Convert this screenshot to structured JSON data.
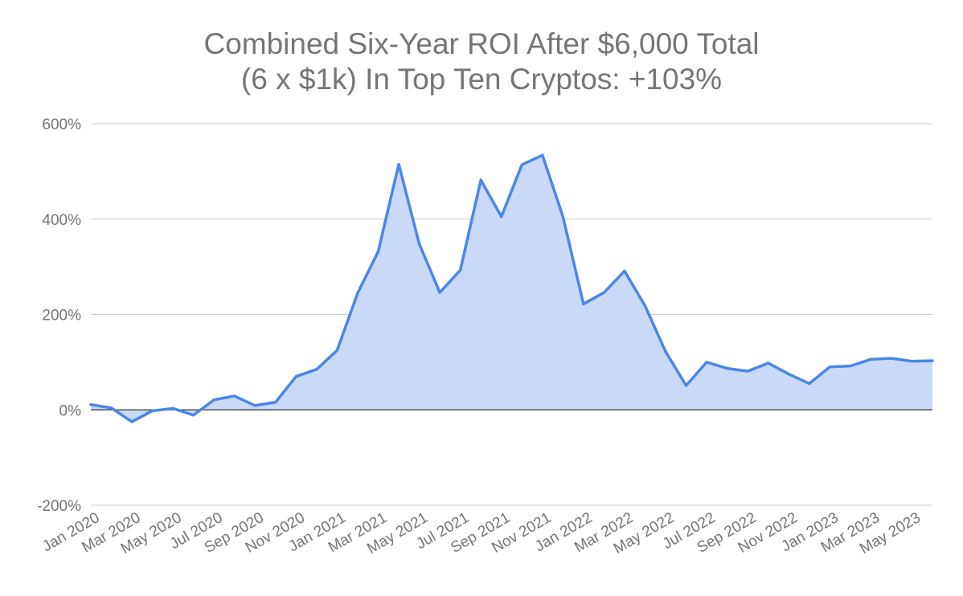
{
  "title": {
    "line1": "Combined Six-Year ROI After $6,000 Total",
    "line2": "(6 x $1k) In Top Ten Cryptos: +103%"
  },
  "colors": {
    "line": "#4a86e8",
    "fill": "#c9daf8",
    "grid": "#cccccc",
    "zero_line": "#333333",
    "text": "#757575"
  },
  "chart_data": {
    "type": "area",
    "title": "Combined Six-Year ROI After $6,000 Total (6 x $1k) In Top Ten Cryptos: +103%",
    "xlabel": "",
    "ylabel": "",
    "ylim": [
      -200,
      600
    ],
    "y_ticks": [
      "600%",
      "400%",
      "200%",
      "0%",
      "-200%"
    ],
    "y_tick_values": [
      600,
      400,
      200,
      0,
      -200
    ],
    "x_tick_labels": [
      "Jan 2020",
      "Mar 2020",
      "May 2020",
      "Jul 2020",
      "Sep 2020",
      "Nov 2020",
      "Jan 2021",
      "Mar 2021",
      "May 2021",
      "Jul 2021",
      "Sep 2021",
      "Nov 2021",
      "Jan 2022",
      "Mar 2022",
      "May 2022",
      "Jul 2022",
      "Sep 2022",
      "Nov 2022",
      "Jan 2023",
      "Mar 2023",
      "May 2023"
    ],
    "grid": true,
    "legend": "none",
    "x": [
      "Jan 2020",
      "Feb 2020",
      "Mar 2020",
      "Apr 2020",
      "May 2020",
      "Jun 2020",
      "Jul 2020",
      "Aug 2020",
      "Sep 2020",
      "Oct 2020",
      "Nov 2020",
      "Dec 2020",
      "Jan 2021",
      "Feb 2021",
      "Mar 2021",
      "Apr 2021",
      "May 2021",
      "Jun 2021",
      "Jul 2021",
      "Aug 2021",
      "Sep 2021",
      "Oct 2021",
      "Nov 2021",
      "Dec 2021",
      "Jan 2022",
      "Feb 2022",
      "Mar 2022",
      "Apr 2022",
      "May 2022",
      "Jun 2022",
      "Jul 2022",
      "Aug 2022",
      "Sep 2022",
      "Oct 2022",
      "Nov 2022",
      "Dec 2022",
      "Jan 2023",
      "Feb 2023",
      "Mar 2023",
      "Apr 2023",
      "May 2023",
      "Jun 2023"
    ],
    "series": [
      {
        "values": [
          11,
          4,
          -25,
          -2,
          3,
          -11,
          21,
          29,
          9,
          16,
          70,
          85,
          125,
          245,
          332,
          515,
          348,
          246,
          293,
          482,
          405,
          514,
          534,
          405,
          222,
          246,
          291,
          218,
          122,
          51,
          100,
          87,
          81,
          98,
          75,
          55,
          90,
          92,
          106,
          108,
          102,
          103
        ]
      }
    ]
  }
}
